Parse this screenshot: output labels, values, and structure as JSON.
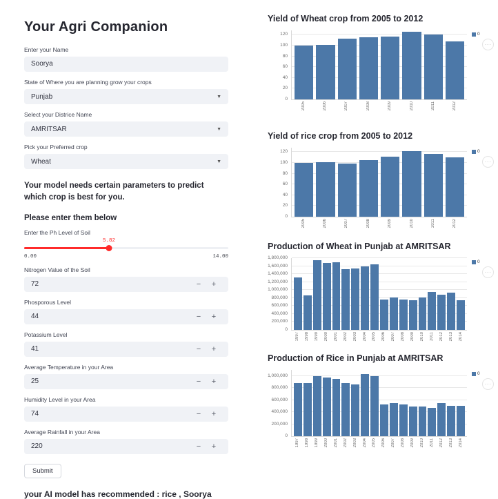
{
  "app": {
    "title": "Your Agri Companion",
    "recommendation": "your AI model has recommended : rice , Soorya"
  },
  "form": {
    "name": {
      "label": "Enter your Name",
      "value": "Soorya"
    },
    "state": {
      "label": "State of Where you are planning grow your crops",
      "value": "Punjab"
    },
    "district": {
      "label": "Select your Districe Name",
      "value": "AMRITSAR"
    },
    "crop": {
      "label": "Pick your Preferred crop",
      "value": "Wheat"
    },
    "params_heading": "Your model needs certain parameters to predict which crop is best for you.",
    "enter_below": "Please enter them below",
    "ph_slider": {
      "label": "Enter the Ph Level of Soil",
      "value": "5.82",
      "min": 0,
      "max": 14,
      "min_label": "0.00",
      "max_label": "14.00"
    },
    "number_inputs": [
      {
        "label": "Nitrogen Value of the Soil",
        "value": "72"
      },
      {
        "label": "Phosporous Level",
        "value": "44"
      },
      {
        "label": "Potassium Level",
        "value": "41"
      },
      {
        "label": "Average Temperature in your Area",
        "value": "25"
      },
      {
        "label": "Humidity Level in your Area",
        "value": "74"
      },
      {
        "label": "Average Rainfall in your Area",
        "value": "220"
      }
    ],
    "minus_label": "−",
    "plus_label": "+",
    "submit_label": "Submit"
  },
  "chart_ui": {
    "menu_icon": "···",
    "legend_series": "0"
  },
  "colors": {
    "bar": "#4c78a8",
    "slider_accent": "#ff2b2b"
  },
  "chart_data": [
    {
      "type": "bar",
      "title": "Yield of Wheat crop from 2005 to 2012",
      "categories": [
        "2005",
        "2006",
        "2007",
        "2008",
        "2009",
        "2010",
        "2011",
        "2012"
      ],
      "values": [
        100,
        101,
        113,
        115,
        117,
        126,
        120,
        108
      ],
      "series_name": "0",
      "xlabel": "",
      "ylabel": "",
      "ylim": [
        0,
        128
      ],
      "yticks": [
        0,
        20,
        40,
        60,
        80,
        100,
        120
      ],
      "ytick_labels": [
        "0",
        "20",
        "40",
        "60",
        "80",
        "100",
        "120"
      ],
      "grid": true,
      "legend_position": "top-right"
    },
    {
      "type": "bar",
      "title": "Yield of rice crop from 2005 to 2012",
      "categories": [
        "2005",
        "2006",
        "2007",
        "2008",
        "2009",
        "2010",
        "2011",
        "2012"
      ],
      "values": [
        100,
        101,
        99,
        105,
        112,
        122,
        117,
        110
      ],
      "series_name": "0",
      "xlabel": "",
      "ylabel": "",
      "ylim": [
        0,
        128
      ],
      "yticks": [
        0,
        20,
        40,
        60,
        80,
        100,
        120
      ],
      "ytick_labels": [
        "0",
        "20",
        "40",
        "60",
        "80",
        "100",
        "120"
      ],
      "grid": true,
      "legend_position": "top-right"
    },
    {
      "type": "bar",
      "title": "Production of Wheat in Punjab at AMRITSAR",
      "categories": [
        "1997",
        "1998",
        "1999",
        "2000",
        "2001",
        "2002",
        "2003",
        "2004",
        "2005",
        "2006",
        "2007",
        "2008",
        "2009",
        "2010",
        "2011",
        "2012",
        "2013",
        "2014"
      ],
      "values": [
        1320000,
        865000,
        1740000,
        1685000,
        1700000,
        1515000,
        1545000,
        1590000,
        1640000,
        765000,
        815000,
        760000,
        750000,
        815000,
        955000,
        875000,
        940000,
        740000
      ],
      "series_name": "0",
      "xlabel": "",
      "ylabel": "",
      "ylim": [
        0,
        1800000
      ],
      "yticks": [
        0,
        200000,
        400000,
        600000,
        800000,
        1000000,
        1200000,
        1400000,
        1600000,
        1800000
      ],
      "ytick_labels": [
        "0",
        "200,000",
        "400,000",
        "600,000",
        "800,000",
        "1,000,000",
        "1,200,000",
        "1,400,000",
        "1,600,000",
        "1,800,000"
      ],
      "grid": true,
      "legend_position": "top-right"
    },
    {
      "type": "bar",
      "title": "Production of Rice in Punjab at AMRITSAR",
      "categories": [
        "1997",
        "1998",
        "1999",
        "2000",
        "2001",
        "2002",
        "2003",
        "2004",
        "2005",
        "2006",
        "2007",
        "2008",
        "2009",
        "2010",
        "2011",
        "2012",
        "2013",
        "2014"
      ],
      "values": [
        880000,
        880000,
        995000,
        970000,
        955000,
        880000,
        865000,
        1035000,
        1000000,
        525000,
        550000,
        525000,
        495000,
        495000,
        475000,
        545000,
        510000,
        500000
      ],
      "series_name": "0",
      "xlabel": "",
      "ylabel": "",
      "ylim": [
        0,
        1100000
      ],
      "yticks": [
        0,
        200000,
        400000,
        600000,
        800000,
        1000000
      ],
      "ytick_labels": [
        "0",
        "200,000",
        "400,000",
        "600,000",
        "800,000",
        "1,000,000"
      ],
      "grid": true,
      "legend_position": "top-right"
    }
  ]
}
